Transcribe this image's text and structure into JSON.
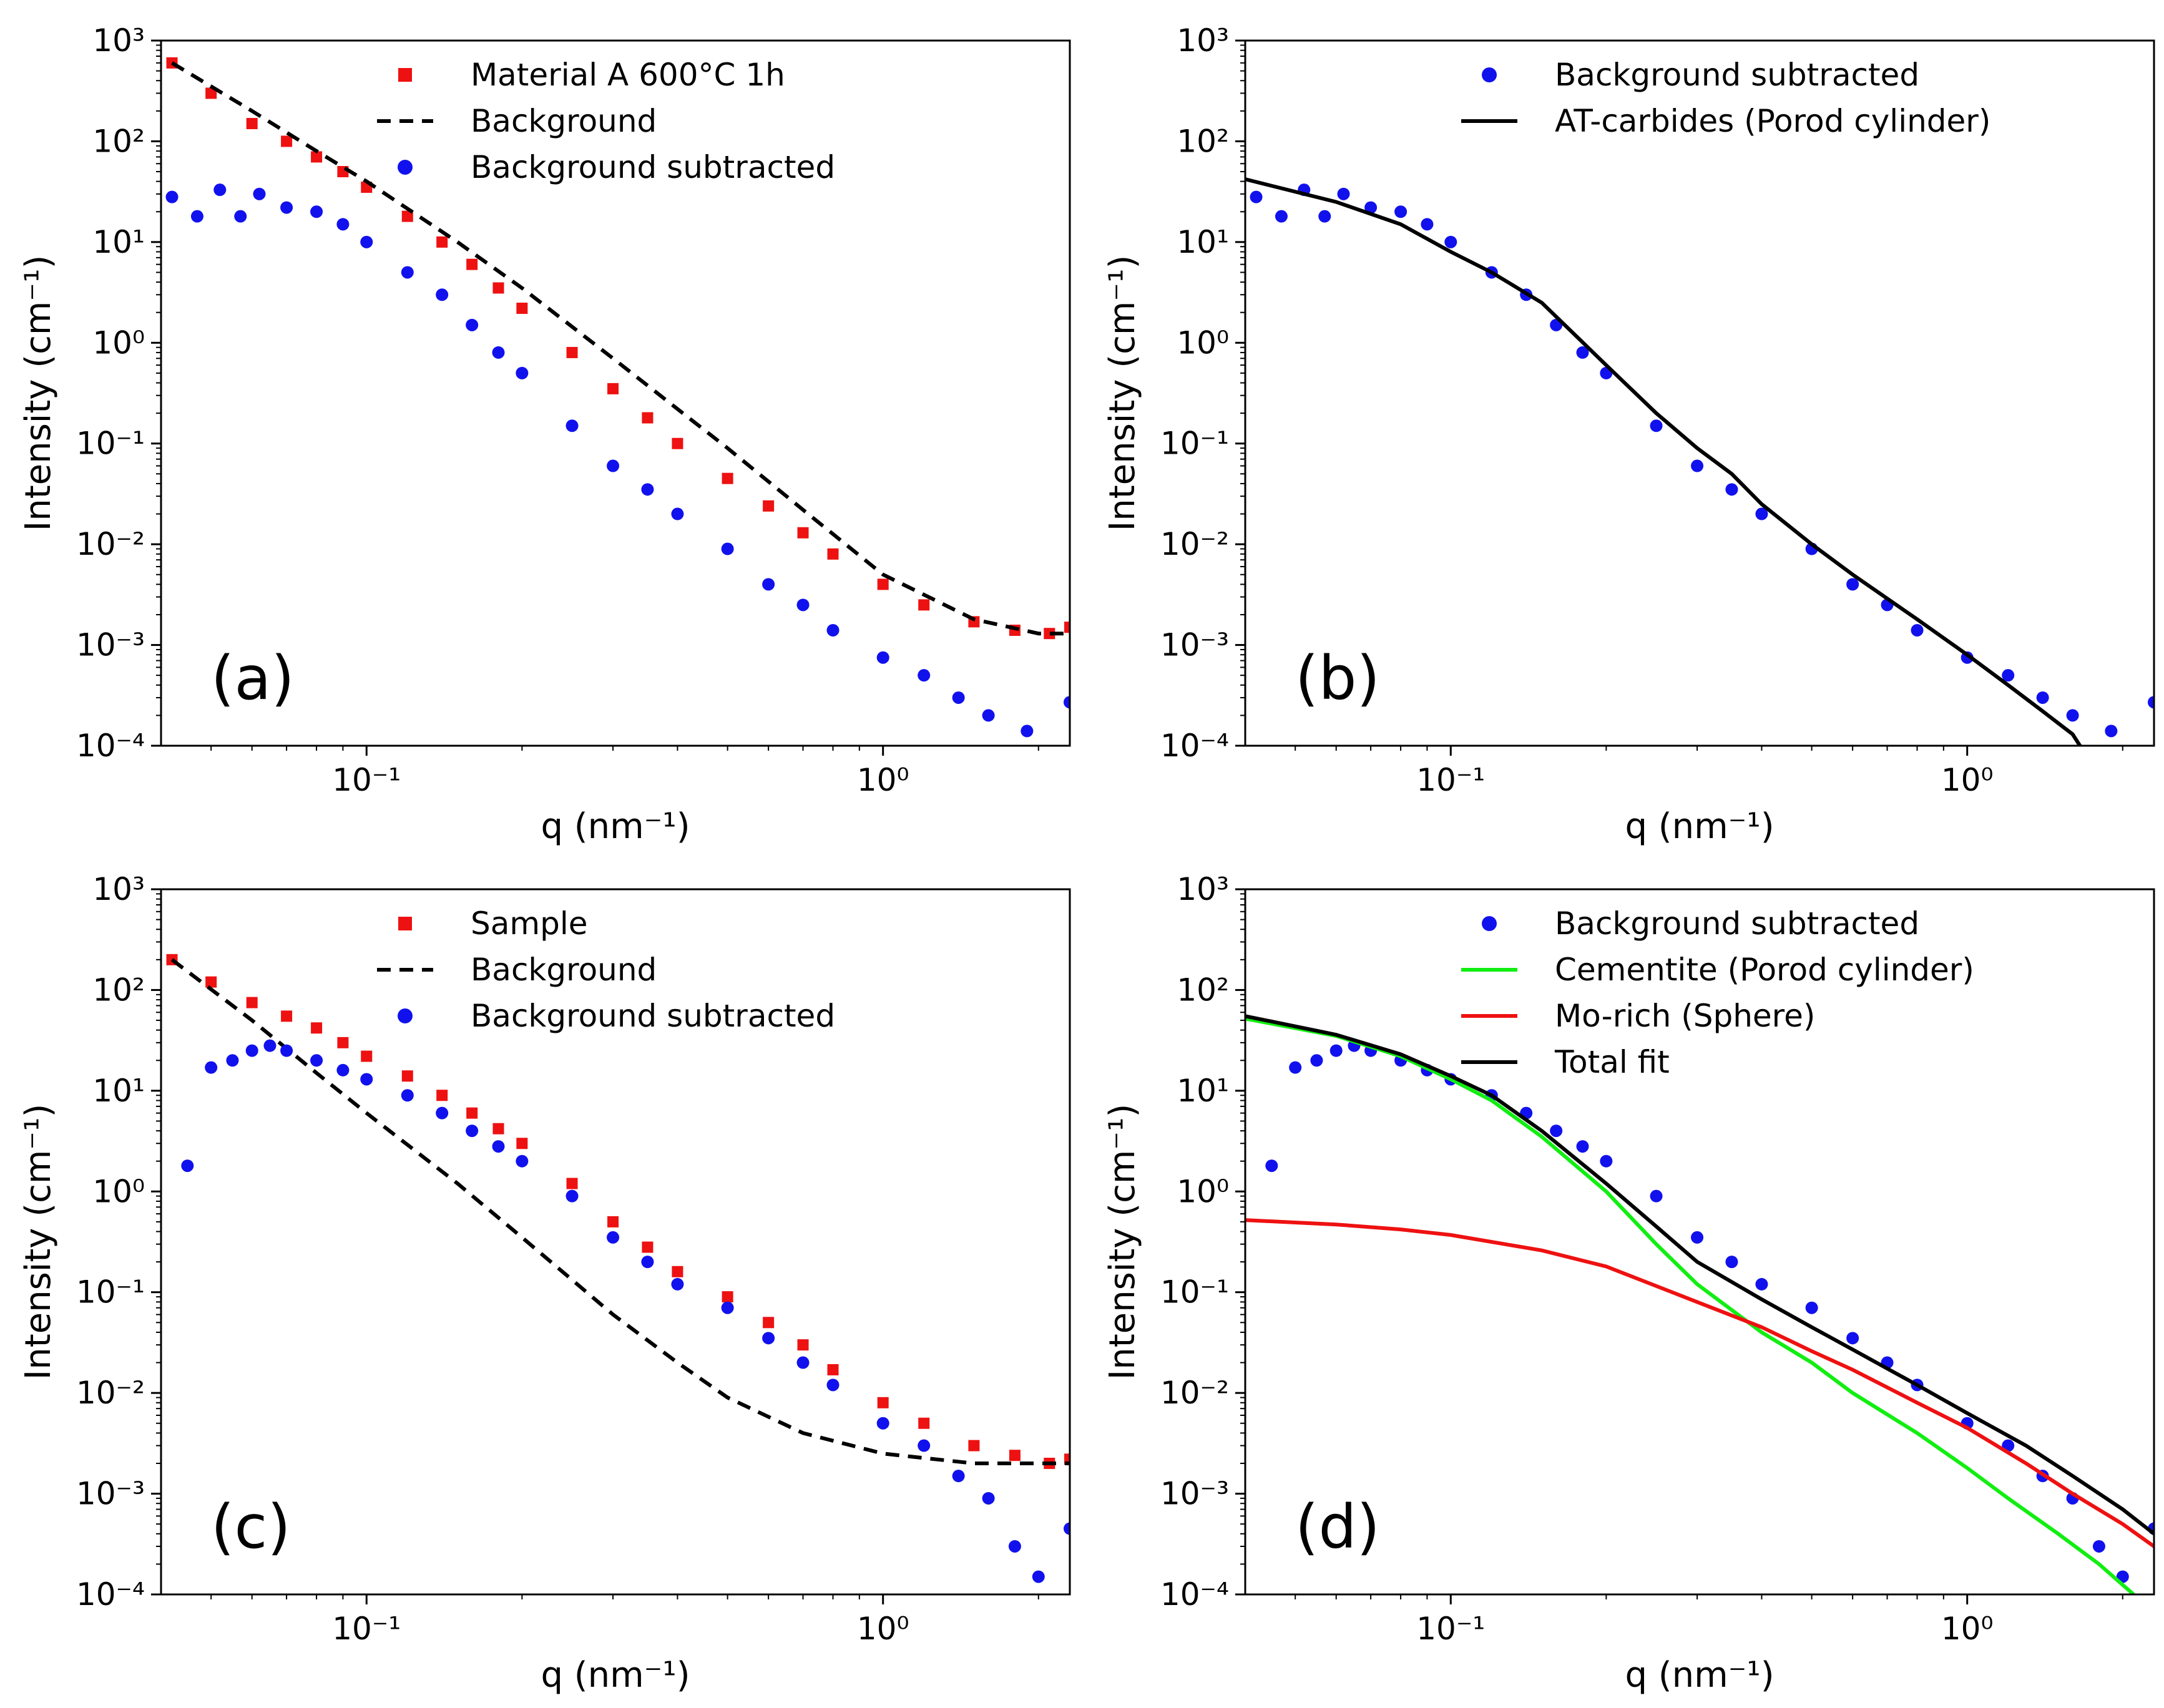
{
  "figure": {
    "panels": [
      "(a)",
      "(b)",
      "(c)",
      "(d)"
    ]
  },
  "chart_data": [
    {
      "id": "a",
      "type": "scatter",
      "panel_label": "(a)",
      "xlabel": "q (nm⁻¹)",
      "ylabel": "Intensity (cm⁻¹)",
      "xscale": "log",
      "yscale": "log",
      "xlim": [
        0.04,
        2.3
      ],
      "ylim": [
        0.0001,
        1000
      ],
      "x_ticks": [
        "10⁻¹",
        "10⁰"
      ],
      "y_ticks": [
        "10⁻⁴",
        "10⁻³",
        "10⁻²",
        "10⁻¹",
        "10⁰",
        "10¹",
        "10²",
        "10³"
      ],
      "legend_position": "top-right",
      "series": [
        {
          "name": "Material A 600°C 1h",
          "style": "square",
          "color": "#ee1111",
          "x": [
            0.042,
            0.05,
            0.06,
            0.07,
            0.08,
            0.09,
            0.1,
            0.12,
            0.14,
            0.16,
            0.18,
            0.2,
            0.25,
            0.3,
            0.35,
            0.4,
            0.5,
            0.6,
            0.7,
            0.8,
            1.0,
            1.2,
            1.5,
            1.8,
            2.1,
            2.3
          ],
          "y": [
            600,
            300,
            150,
            100,
            70,
            50,
            35,
            18,
            10,
            6,
            3.5,
            2.2,
            0.8,
            0.35,
            0.18,
            0.1,
            0.045,
            0.024,
            0.013,
            0.008,
            0.004,
            0.0025,
            0.0017,
            0.0014,
            0.0013,
            0.0015
          ]
        },
        {
          "name": "Background",
          "style": "dashed-line",
          "color": "#000000",
          "x": [
            0.042,
            0.06,
            0.08,
            0.1,
            0.15,
            0.2,
            0.3,
            0.4,
            0.5,
            0.7,
            1.0,
            1.5,
            2.0,
            2.3
          ],
          "y": [
            600,
            200,
            80,
            40,
            10,
            3.5,
            0.7,
            0.22,
            0.09,
            0.022,
            0.005,
            0.0018,
            0.0013,
            0.0013
          ]
        },
        {
          "name": "Background subtracted",
          "style": "circle",
          "color": "#1111ee",
          "x": [
            0.042,
            0.047,
            0.052,
            0.057,
            0.062,
            0.07,
            0.08,
            0.09,
            0.1,
            0.12,
            0.14,
            0.16,
            0.18,
            0.2,
            0.25,
            0.3,
            0.35,
            0.4,
            0.5,
            0.6,
            0.7,
            0.8,
            1.0,
            1.2,
            1.4,
            1.6,
            1.9,
            2.3
          ],
          "y": [
            28,
            18,
            33,
            18,
            30,
            22,
            20,
            15,
            10,
            5,
            3,
            1.5,
            0.8,
            0.5,
            0.15,
            0.06,
            0.035,
            0.02,
            0.009,
            0.004,
            0.0025,
            0.0014,
            0.00075,
            0.0005,
            0.0003,
            0.0002,
            0.00014,
            0.00027
          ]
        }
      ]
    },
    {
      "id": "b",
      "type": "scatter",
      "panel_label": "(b)",
      "xlabel": "q (nm⁻¹)",
      "ylabel": "Intensity (cm⁻¹)",
      "xscale": "log",
      "yscale": "log",
      "xlim": [
        0.04,
        2.3
      ],
      "ylim": [
        0.0001,
        1000
      ],
      "x_ticks": [
        "10⁻¹",
        "10⁰"
      ],
      "y_ticks": [
        "10⁻⁴",
        "10⁻³",
        "10⁻²",
        "10⁻¹",
        "10⁰",
        "10¹",
        "10²",
        "10³"
      ],
      "legend_position": "top-right",
      "series": [
        {
          "name": "Background subtracted",
          "style": "circle",
          "color": "#1111ee",
          "x": [
            0.042,
            0.047,
            0.052,
            0.057,
            0.062,
            0.07,
            0.08,
            0.09,
            0.1,
            0.12,
            0.14,
            0.16,
            0.18,
            0.2,
            0.25,
            0.3,
            0.35,
            0.4,
            0.5,
            0.6,
            0.7,
            0.8,
            1.0,
            1.2,
            1.4,
            1.6,
            1.9,
            2.3
          ],
          "y": [
            28,
            18,
            33,
            18,
            30,
            22,
            20,
            15,
            10,
            5,
            3,
            1.5,
            0.8,
            0.5,
            0.15,
            0.06,
            0.035,
            0.02,
            0.009,
            0.004,
            0.0025,
            0.0014,
            0.00075,
            0.0005,
            0.0003,
            0.0002,
            0.00014,
            0.00027
          ]
        },
        {
          "name": "AT-carbides (Porod cylinder)",
          "style": "solid-line",
          "color": "#000000",
          "x": [
            0.04,
            0.06,
            0.08,
            0.1,
            0.12,
            0.15,
            0.2,
            0.25,
            0.3,
            0.35,
            0.4,
            0.5,
            0.6,
            0.8,
            1.0,
            1.2,
            1.4,
            1.6,
            1.7
          ],
          "y": [
            42,
            25,
            15,
            8,
            5,
            2.5,
            0.6,
            0.2,
            0.09,
            0.05,
            0.025,
            0.01,
            0.005,
            0.0018,
            0.0008,
            0.0004,
            0.00022,
            0.00013,
            8e-05
          ]
        }
      ]
    },
    {
      "id": "c",
      "type": "scatter",
      "panel_label": "(c)",
      "xlabel": "q (nm⁻¹)",
      "ylabel": "Intensity (cm⁻¹)",
      "xscale": "log",
      "yscale": "log",
      "xlim": [
        0.04,
        2.3
      ],
      "ylim": [
        0.0001,
        1000
      ],
      "x_ticks": [
        "10⁻¹",
        "10⁰"
      ],
      "y_ticks": [
        "10⁻⁴",
        "10⁻³",
        "10⁻²",
        "10⁻¹",
        "10⁰",
        "10¹",
        "10²",
        "10³"
      ],
      "legend_position": "top-right",
      "series": [
        {
          "name": "Sample",
          "style": "square",
          "color": "#ee1111",
          "x": [
            0.042,
            0.05,
            0.06,
            0.07,
            0.08,
            0.09,
            0.1,
            0.12,
            0.14,
            0.16,
            0.18,
            0.2,
            0.25,
            0.3,
            0.35,
            0.4,
            0.5,
            0.6,
            0.7,
            0.8,
            1.0,
            1.2,
            1.5,
            1.8,
            2.1,
            2.3
          ],
          "y": [
            200,
            120,
            75,
            55,
            42,
            30,
            22,
            14,
            9,
            6,
            4.2,
            3,
            1.2,
            0.5,
            0.28,
            0.16,
            0.09,
            0.05,
            0.03,
            0.017,
            0.008,
            0.005,
            0.003,
            0.0024,
            0.002,
            0.0022
          ]
        },
        {
          "name": "Background",
          "style": "dashed-line",
          "color": "#000000",
          "x": [
            0.042,
            0.06,
            0.08,
            0.1,
            0.15,
            0.2,
            0.3,
            0.4,
            0.5,
            0.7,
            1.0,
            1.5,
            2.0,
            2.3
          ],
          "y": [
            200,
            50,
            15,
            6,
            1.2,
            0.35,
            0.06,
            0.02,
            0.009,
            0.004,
            0.0025,
            0.002,
            0.002,
            0.002
          ]
        },
        {
          "name": "Background subtracted",
          "style": "circle",
          "color": "#1111ee",
          "x": [
            0.045,
            0.05,
            0.055,
            0.06,
            0.065,
            0.07,
            0.08,
            0.09,
            0.1,
            0.12,
            0.14,
            0.16,
            0.18,
            0.2,
            0.25,
            0.3,
            0.35,
            0.4,
            0.5,
            0.6,
            0.7,
            0.8,
            1.0,
            1.2,
            1.4,
            1.6,
            1.8,
            2.0,
            2.3
          ],
          "y": [
            1.8,
            17,
            20,
            25,
            28,
            25,
            20,
            16,
            13,
            9,
            6,
            4,
            2.8,
            2,
            0.9,
            0.35,
            0.2,
            0.12,
            0.07,
            0.035,
            0.02,
            0.012,
            0.005,
            0.003,
            0.0015,
            0.0009,
            0.0003,
            0.00015,
            0.00045
          ]
        }
      ]
    },
    {
      "id": "d",
      "type": "scatter",
      "panel_label": "(d)",
      "xlabel": "q (nm⁻¹)",
      "ylabel": "Intensity (cm⁻¹)",
      "xscale": "log",
      "yscale": "log",
      "xlim": [
        0.04,
        2.3
      ],
      "ylim": [
        0.0001,
        1000
      ],
      "x_ticks": [
        "10⁻¹",
        "10⁰"
      ],
      "y_ticks": [
        "10⁻⁴",
        "10⁻³",
        "10⁻²",
        "10⁻¹",
        "10⁰",
        "10¹",
        "10²",
        "10³"
      ],
      "legend_position": "top-right",
      "series": [
        {
          "name": "Background subtracted",
          "style": "circle",
          "color": "#1111ee",
          "x": [
            0.045,
            0.05,
            0.055,
            0.06,
            0.065,
            0.07,
            0.08,
            0.09,
            0.1,
            0.12,
            0.14,
            0.16,
            0.18,
            0.2,
            0.25,
            0.3,
            0.35,
            0.4,
            0.5,
            0.6,
            0.7,
            0.8,
            1.0,
            1.2,
            1.4,
            1.6,
            1.8,
            2.0,
            2.3
          ],
          "y": [
            1.8,
            17,
            20,
            25,
            28,
            25,
            20,
            16,
            13,
            9,
            6,
            4,
            2.8,
            2,
            0.9,
            0.35,
            0.2,
            0.12,
            0.07,
            0.035,
            0.02,
            0.012,
            0.005,
            0.003,
            0.0015,
            0.0009,
            0.0003,
            0.00015,
            0.00045
          ]
        },
        {
          "name": "Cementite (Porod cylinder)",
          "style": "solid-line",
          "color": "#11ee11",
          "x": [
            0.04,
            0.06,
            0.08,
            0.1,
            0.12,
            0.15,
            0.2,
            0.25,
            0.3,
            0.4,
            0.5,
            0.6,
            0.8,
            1.0,
            1.2,
            1.5,
            1.8,
            2.1
          ],
          "y": [
            52,
            35,
            22,
            13,
            8,
            3.5,
            1.0,
            0.3,
            0.12,
            0.04,
            0.02,
            0.01,
            0.004,
            0.0018,
            0.0009,
            0.0004,
            0.0002,
            0.0001
          ]
        },
        {
          "name": "Mo-rich (Sphere)",
          "style": "solid-line",
          "color": "#ee1111",
          "x": [
            0.04,
            0.06,
            0.08,
            0.1,
            0.15,
            0.2,
            0.3,
            0.4,
            0.5,
            0.6,
            0.8,
            1.0,
            1.3,
            1.6,
            2.0,
            2.3
          ],
          "y": [
            0.52,
            0.47,
            0.42,
            0.37,
            0.26,
            0.18,
            0.08,
            0.045,
            0.026,
            0.017,
            0.008,
            0.0045,
            0.002,
            0.001,
            0.0005,
            0.0003
          ]
        },
        {
          "name": "Total fit",
          "style": "solid-line",
          "color": "#000000",
          "x": [
            0.04,
            0.06,
            0.08,
            0.1,
            0.12,
            0.15,
            0.2,
            0.25,
            0.3,
            0.4,
            0.5,
            0.6,
            0.8,
            1.0,
            1.3,
            1.6,
            2.0,
            2.3
          ],
          "y": [
            55,
            36,
            23,
            14,
            9,
            4,
            1.2,
            0.45,
            0.2,
            0.085,
            0.045,
            0.027,
            0.012,
            0.0063,
            0.003,
            0.0015,
            0.0007,
            0.0004
          ]
        }
      ]
    }
  ]
}
